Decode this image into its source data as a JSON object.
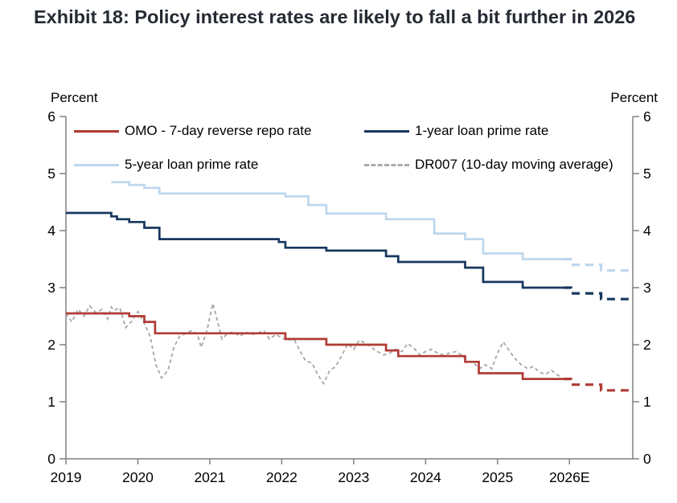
{
  "title": "Exhibit 18: Policy interest rates are likely to fall a bit further in 2026",
  "chart_data": {
    "type": "line",
    "title": "Exhibit 18: Policy interest rates are likely to fall a bit further in 2026",
    "ylabel_left": "Percent",
    "ylabel_right": "Percent",
    "ylim": [
      0,
      6
    ],
    "y_ticks": [
      0,
      1,
      2,
      3,
      4,
      5,
      6
    ],
    "xlim": [
      2019,
      2026.88
    ],
    "grid": false,
    "legend_position": "top-inside-two-columns",
    "x_ticks": [
      {
        "x": 2019,
        "label": "2019"
      },
      {
        "x": 2020,
        "label": "2020"
      },
      {
        "x": 2021,
        "label": "2021"
      },
      {
        "x": 2022,
        "label": "2022"
      },
      {
        "x": 2023,
        "label": "2023"
      },
      {
        "x": 2024,
        "label": "2024"
      },
      {
        "x": 2025,
        "label": "2025"
      },
      {
        "x": 2026,
        "label": "2026E"
      }
    ],
    "legend": [
      {
        "label": "OMO - 7-day reverse repo rate",
        "color": "#b03b34",
        "dash": false
      },
      {
        "label": "1-year loan prime rate",
        "color": "#17375e",
        "dash": false
      },
      {
        "label": "5-year loan prime rate",
        "color": "#bdd7ee",
        "dash": false
      },
      {
        "label": "DR007 (10-day moving average)",
        "color": "#ababab",
        "dash": true
      }
    ],
    "series": [
      {
        "name": "DR007 (10-day moving average)",
        "color": "#ababab",
        "style": "dashed-thin",
        "points": [
          [
            2019.0,
            2.55
          ],
          [
            2019.08,
            2.4
          ],
          [
            2019.17,
            2.62
          ],
          [
            2019.25,
            2.5
          ],
          [
            2019.33,
            2.68
          ],
          [
            2019.42,
            2.56
          ],
          [
            2019.5,
            2.62
          ],
          [
            2019.58,
            2.45
          ],
          [
            2019.63,
            2.66
          ],
          [
            2019.67,
            2.6
          ],
          [
            2019.75,
            2.65
          ],
          [
            2019.83,
            2.3
          ],
          [
            2019.92,
            2.42
          ],
          [
            2020.0,
            2.58
          ],
          [
            2020.08,
            2.4
          ],
          [
            2020.17,
            2.15
          ],
          [
            2020.25,
            1.65
          ],
          [
            2020.33,
            1.42
          ],
          [
            2020.42,
            1.55
          ],
          [
            2020.5,
            1.95
          ],
          [
            2020.58,
            2.15
          ],
          [
            2020.67,
            2.2
          ],
          [
            2020.75,
            2.25
          ],
          [
            2020.83,
            2.18
          ],
          [
            2020.88,
            1.95
          ],
          [
            2020.96,
            2.25
          ],
          [
            2021.04,
            2.72
          ],
          [
            2021.08,
            2.55
          ],
          [
            2021.17,
            2.1
          ],
          [
            2021.25,
            2.2
          ],
          [
            2021.33,
            2.22
          ],
          [
            2021.42,
            2.15
          ],
          [
            2021.5,
            2.22
          ],
          [
            2021.58,
            2.18
          ],
          [
            2021.67,
            2.2
          ],
          [
            2021.75,
            2.25
          ],
          [
            2021.83,
            2.1
          ],
          [
            2021.92,
            2.18
          ],
          [
            2022.0,
            2.12
          ],
          [
            2022.08,
            2.08
          ],
          [
            2022.17,
            2.1
          ],
          [
            2022.25,
            1.9
          ],
          [
            2022.33,
            1.72
          ],
          [
            2022.42,
            1.68
          ],
          [
            2022.5,
            1.48
          ],
          [
            2022.58,
            1.32
          ],
          [
            2022.67,
            1.55
          ],
          [
            2022.75,
            1.62
          ],
          [
            2022.83,
            1.8
          ],
          [
            2022.92,
            2.02
          ],
          [
            2023.0,
            1.92
          ],
          [
            2023.08,
            2.08
          ],
          [
            2023.17,
            2.02
          ],
          [
            2023.25,
            1.95
          ],
          [
            2023.33,
            1.88
          ],
          [
            2023.42,
            1.82
          ],
          [
            2023.5,
            1.85
          ],
          [
            2023.58,
            1.92
          ],
          [
            2023.67,
            1.88
          ],
          [
            2023.75,
            2.02
          ],
          [
            2023.83,
            1.95
          ],
          [
            2023.92,
            1.82
          ],
          [
            2024.0,
            1.88
          ],
          [
            2024.08,
            1.92
          ],
          [
            2024.17,
            1.85
          ],
          [
            2024.25,
            1.82
          ],
          [
            2024.33,
            1.85
          ],
          [
            2024.42,
            1.88
          ],
          [
            2024.5,
            1.82
          ],
          [
            2024.58,
            1.72
          ],
          [
            2024.67,
            1.68
          ],
          [
            2024.75,
            1.58
          ],
          [
            2024.83,
            1.65
          ],
          [
            2024.92,
            1.58
          ],
          [
            2025.0,
            1.85
          ],
          [
            2025.08,
            2.05
          ],
          [
            2025.17,
            1.88
          ],
          [
            2025.25,
            1.75
          ],
          [
            2025.33,
            1.65
          ],
          [
            2025.42,
            1.58
          ],
          [
            2025.5,
            1.62
          ],
          [
            2025.58,
            1.52
          ],
          [
            2025.67,
            1.48
          ],
          [
            2025.75,
            1.55
          ],
          [
            2025.83,
            1.47
          ],
          [
            2025.9,
            1.43
          ]
        ]
      },
      {
        "name": "5-year loan prime rate",
        "color": "#bdd7ee",
        "style": "solid",
        "points": [
          [
            2019.63,
            4.85
          ],
          [
            2019.88,
            4.85
          ],
          [
            2019.88,
            4.8
          ],
          [
            2020.09,
            4.8
          ],
          [
            2020.09,
            4.75
          ],
          [
            2020.3,
            4.75
          ],
          [
            2020.3,
            4.65
          ],
          [
            2022.05,
            4.65
          ],
          [
            2022.05,
            4.6
          ],
          [
            2022.37,
            4.6
          ],
          [
            2022.37,
            4.45
          ],
          [
            2022.62,
            4.45
          ],
          [
            2022.62,
            4.3
          ],
          [
            2023.45,
            4.3
          ],
          [
            2023.45,
            4.2
          ],
          [
            2024.12,
            4.2
          ],
          [
            2024.12,
            3.95
          ],
          [
            2024.55,
            3.95
          ],
          [
            2024.55,
            3.85
          ],
          [
            2024.8,
            3.85
          ],
          [
            2024.8,
            3.6
          ],
          [
            2025.35,
            3.6
          ],
          [
            2025.35,
            3.5
          ],
          [
            2025.92,
            3.5
          ]
        ],
        "forecast": [
          [
            2025.92,
            3.5
          ],
          [
            2026.02,
            3.5
          ],
          [
            2026.02,
            3.4
          ],
          [
            2026.44,
            3.4
          ],
          [
            2026.44,
            3.3
          ],
          [
            2026.88,
            3.3
          ]
        ]
      },
      {
        "name": "1-year loan prime rate",
        "color": "#17375e",
        "style": "solid",
        "points": [
          [
            2019.0,
            4.31
          ],
          [
            2019.63,
            4.31
          ],
          [
            2019.63,
            4.25
          ],
          [
            2019.71,
            4.25
          ],
          [
            2019.71,
            4.2
          ],
          [
            2019.88,
            4.2
          ],
          [
            2019.88,
            4.15
          ],
          [
            2020.09,
            4.15
          ],
          [
            2020.09,
            4.05
          ],
          [
            2020.3,
            4.05
          ],
          [
            2020.3,
            3.85
          ],
          [
            2021.96,
            3.85
          ],
          [
            2021.96,
            3.8
          ],
          [
            2022.05,
            3.8
          ],
          [
            2022.05,
            3.7
          ],
          [
            2022.62,
            3.7
          ],
          [
            2022.62,
            3.65
          ],
          [
            2023.45,
            3.65
          ],
          [
            2023.45,
            3.55
          ],
          [
            2023.62,
            3.55
          ],
          [
            2023.62,
            3.45
          ],
          [
            2024.55,
            3.45
          ],
          [
            2024.55,
            3.35
          ],
          [
            2024.8,
            3.35
          ],
          [
            2024.8,
            3.1
          ],
          [
            2025.35,
            3.1
          ],
          [
            2025.35,
            3.0
          ],
          [
            2025.92,
            3.0
          ]
        ],
        "forecast": [
          [
            2025.92,
            3.0
          ],
          [
            2026.02,
            3.0
          ],
          [
            2026.02,
            2.9
          ],
          [
            2026.44,
            2.9
          ],
          [
            2026.44,
            2.8
          ],
          [
            2026.88,
            2.8
          ]
        ]
      },
      {
        "name": "OMO - 7-day reverse repo rate",
        "color": "#b03b34",
        "style": "solid",
        "points": [
          [
            2019.0,
            2.55
          ],
          [
            2019.88,
            2.55
          ],
          [
            2019.88,
            2.5
          ],
          [
            2020.09,
            2.5
          ],
          [
            2020.09,
            2.4
          ],
          [
            2020.24,
            2.4
          ],
          [
            2020.24,
            2.2
          ],
          [
            2022.05,
            2.2
          ],
          [
            2022.05,
            2.1
          ],
          [
            2022.62,
            2.1
          ],
          [
            2022.62,
            2.0
          ],
          [
            2023.45,
            2.0
          ],
          [
            2023.45,
            1.9
          ],
          [
            2023.62,
            1.9
          ],
          [
            2023.62,
            1.8
          ],
          [
            2024.55,
            1.8
          ],
          [
            2024.55,
            1.7
          ],
          [
            2024.74,
            1.7
          ],
          [
            2024.74,
            1.5
          ],
          [
            2025.35,
            1.5
          ],
          [
            2025.35,
            1.4
          ],
          [
            2025.92,
            1.4
          ]
        ],
        "forecast": [
          [
            2025.92,
            1.4
          ],
          [
            2026.02,
            1.4
          ],
          [
            2026.02,
            1.3
          ],
          [
            2026.44,
            1.3
          ],
          [
            2026.44,
            1.2
          ],
          [
            2026.88,
            1.2
          ]
        ]
      }
    ],
    "axis_color": "#808080",
    "tick_label_color": "#000000"
  }
}
